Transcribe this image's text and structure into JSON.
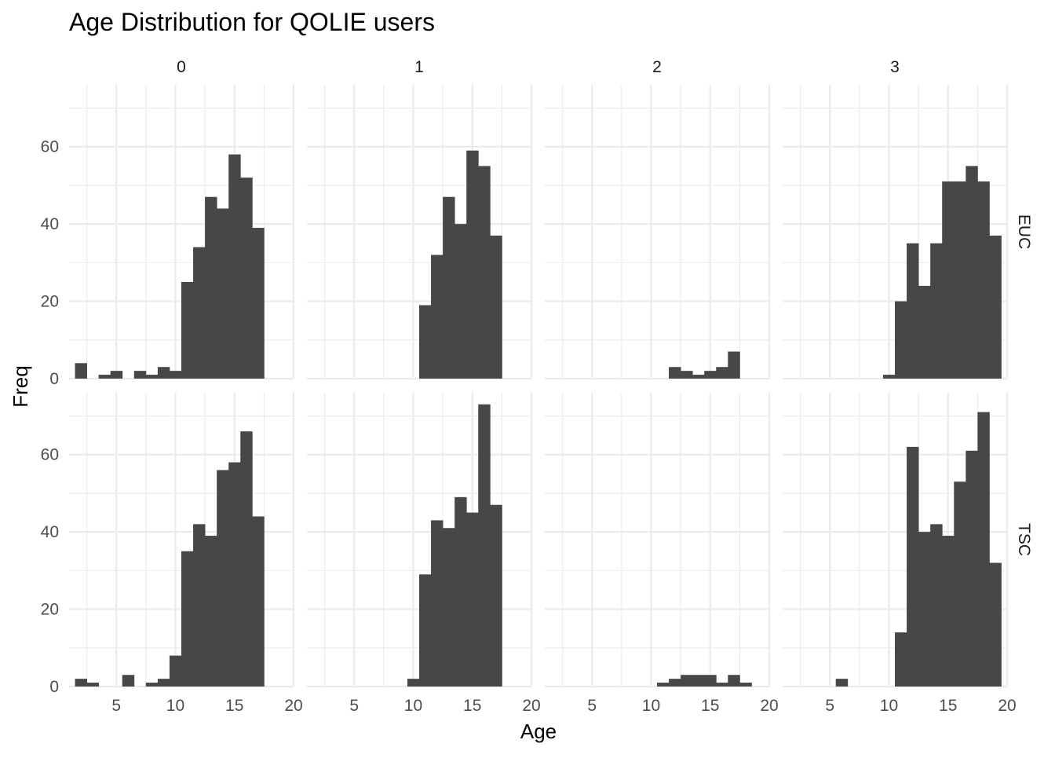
{
  "chart_data": {
    "type": "bar",
    "title": "Age Distribution for QOLIE users",
    "xlabel": "Age",
    "ylabel": "Freq",
    "xlim": [
      1,
      20
    ],
    "ylim": [
      0,
      76
    ],
    "x_ticks": [
      "5",
      "10",
      "15",
      "20"
    ],
    "x_tick_values": [
      5,
      10,
      15,
      20
    ],
    "y_ticks": [
      "0",
      "20",
      "40",
      "60"
    ],
    "y_tick_values": [
      0,
      20,
      40,
      60
    ],
    "bin_width": 1,
    "bar_color": "#474747",
    "grid": true,
    "facet_columns": [
      "0",
      "1",
      "2",
      "3"
    ],
    "facet_rows": [
      "EUC",
      "TSC"
    ],
    "panels": [
      {
        "col": "0",
        "row": "EUC",
        "bins": [
          [
            2,
            4
          ],
          [
            4,
            1
          ],
          [
            5,
            2
          ],
          [
            7,
            2
          ],
          [
            8,
            1
          ],
          [
            9,
            3
          ],
          [
            10,
            2
          ],
          [
            11,
            25
          ],
          [
            12,
            34
          ],
          [
            13,
            47
          ],
          [
            14,
            44
          ],
          [
            15,
            58
          ],
          [
            16,
            52
          ],
          [
            17,
            39
          ]
        ]
      },
      {
        "col": "1",
        "row": "EUC",
        "bins": [
          [
            11,
            19
          ],
          [
            12,
            32
          ],
          [
            13,
            47
          ],
          [
            14,
            40
          ],
          [
            15,
            59
          ],
          [
            16,
            55
          ],
          [
            17,
            37
          ]
        ]
      },
      {
        "col": "2",
        "row": "EUC",
        "bins": [
          [
            12,
            3
          ],
          [
            13,
            2
          ],
          [
            14,
            1
          ],
          [
            15,
            2
          ],
          [
            16,
            3
          ],
          [
            17,
            7
          ]
        ]
      },
      {
        "col": "3",
        "row": "EUC",
        "bins": [
          [
            10,
            1
          ],
          [
            11,
            20
          ],
          [
            12,
            35
          ],
          [
            13,
            24
          ],
          [
            14,
            35
          ],
          [
            15,
            51
          ],
          [
            16,
            51
          ],
          [
            17,
            55
          ],
          [
            18,
            51
          ],
          [
            19,
            37
          ]
        ]
      },
      {
        "col": "0",
        "row": "TSC",
        "bins": [
          [
            2,
            2
          ],
          [
            3,
            1
          ],
          [
            6,
            3
          ],
          [
            8,
            1
          ],
          [
            9,
            2
          ],
          [
            10,
            8
          ],
          [
            11,
            35
          ],
          [
            12,
            42
          ],
          [
            13,
            39
          ],
          [
            14,
            56
          ],
          [
            15,
            58
          ],
          [
            16,
            66
          ],
          [
            17,
            44
          ]
        ]
      },
      {
        "col": "1",
        "row": "TSC",
        "bins": [
          [
            10,
            2
          ],
          [
            11,
            29
          ],
          [
            12,
            43
          ],
          [
            13,
            41
          ],
          [
            14,
            49
          ],
          [
            15,
            45
          ],
          [
            16,
            73
          ],
          [
            17,
            47
          ]
        ]
      },
      {
        "col": "2",
        "row": "TSC",
        "bins": [
          [
            11,
            1
          ],
          [
            12,
            2
          ],
          [
            13,
            3
          ],
          [
            14,
            3
          ],
          [
            15,
            3
          ],
          [
            16,
            1
          ],
          [
            17,
            3
          ],
          [
            18,
            1
          ]
        ]
      },
      {
        "col": "3",
        "row": "TSC",
        "bins": [
          [
            6,
            2
          ],
          [
            11,
            14
          ],
          [
            12,
            62
          ],
          [
            13,
            40
          ],
          [
            14,
            42
          ],
          [
            15,
            39
          ],
          [
            16,
            53
          ],
          [
            17,
            61
          ],
          [
            18,
            71
          ],
          [
            19,
            32
          ]
        ]
      }
    ]
  }
}
